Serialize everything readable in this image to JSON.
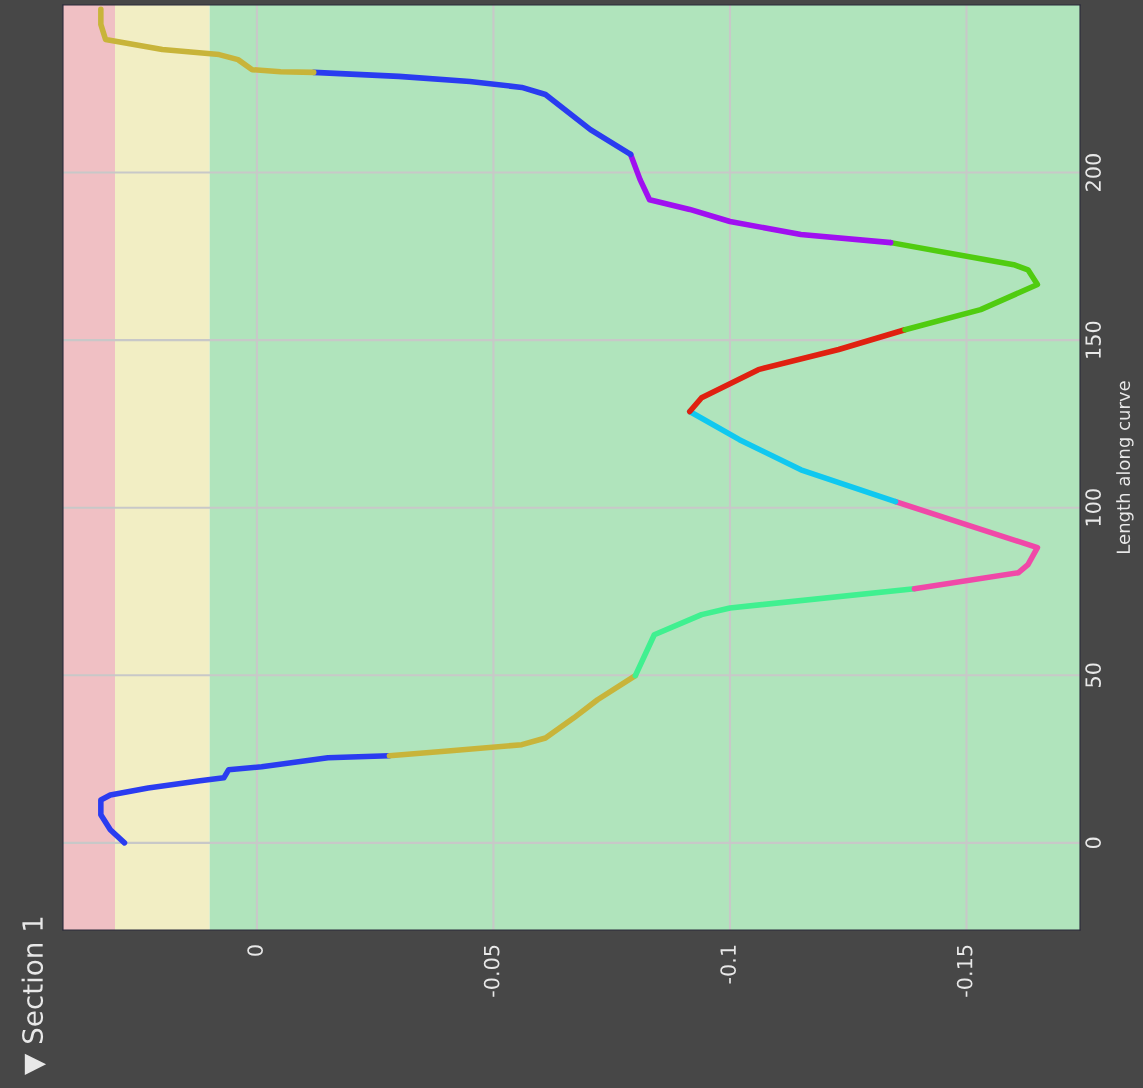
{
  "chart_data": {
    "type": "line",
    "title": "▼ Section 1",
    "ylabel": "Length along curve",
    "ylim": [
      -26,
      250
    ],
    "yticks": [
      0,
      50,
      100,
      150,
      200
    ],
    "xlim": [
      0.041,
      -0.174
    ],
    "xticks": [
      0,
      -0.05,
      -0.1,
      -0.15
    ],
    "grid": true,
    "marker": "none",
    "line_style": "solid",
    "bands": [
      {
        "axis": "x",
        "from": 0.03,
        "to": 0.041,
        "color": "#f0c0c4"
      },
      {
        "axis": "x",
        "from": 0.01,
        "to": 0.03,
        "color": "#f2eec4"
      },
      {
        "axis": "x",
        "from": -0.174,
        "to": 0.01,
        "color": "#b0e4bc"
      }
    ],
    "series": [
      {
        "color": "#2a3cf0",
        "values": [
          0,
          3.9,
          8.4,
          12.8,
          14.3,
          16.4,
          18.5,
          19.4,
          21.8,
          22.7,
          25.4,
          26
        ],
        "x": [
          0.028,
          0.031,
          0.033,
          0.033,
          0.031,
          0.023,
          0.012,
          0.007,
          0.006,
          -0.001,
          -0.015,
          -0.028
        ]
      },
      {
        "color": "#c8b43a",
        "values": [
          26,
          27.5,
          29.3,
          31.3,
          37.3,
          42.7,
          49.9
        ],
        "x": [
          -0.028,
          -0.041,
          -0.056,
          -0.061,
          -0.067,
          -0.072,
          -0.08
        ]
      },
      {
        "color": "#40f090",
        "values": [
          49.9,
          62.1,
          68.1,
          70.1,
          75.8
        ],
        "x": [
          -0.08,
          -0.084,
          -0.094,
          -0.1,
          -0.139
        ]
      },
      {
        "color": "#f048a8",
        "values": [
          75.8,
          80.6,
          83,
          88.1,
          101.8
        ],
        "x": [
          -0.139,
          -0.161,
          -0.163,
          -0.165,
          -0.135
        ]
      },
      {
        "color": "#10c8f0",
        "values": [
          101.8,
          111.3,
          120.3,
          128.7
        ],
        "x": [
          -0.135,
          -0.115,
          -0.102,
          -0.0915
        ]
      },
      {
        "color": "#e02010",
        "values": [
          128.7,
          132.8,
          141.2,
          147.2,
          153.1
        ],
        "x": [
          -0.0915,
          -0.094,
          -0.106,
          -0.123,
          -0.137
        ]
      },
      {
        "color": "#50cc10",
        "values": [
          153.1,
          159.1,
          166.6,
          171,
          172.5,
          179.1
        ],
        "x": [
          -0.137,
          -0.153,
          -0.165,
          -0.163,
          -0.16,
          -0.134
        ]
      },
      {
        "color": "#a010f0",
        "values": [
          179.1,
          181.5,
          185.4,
          189,
          191.9,
          197.9,
          205.4
        ],
        "x": [
          -0.134,
          -0.115,
          -0.1,
          -0.0915,
          -0.083,
          -0.081,
          -0.079
        ]
      },
      {
        "color": "#2a3cf0",
        "values": [
          205.4,
          212.8,
          223.3,
          225.4,
          227.2,
          228.7,
          229.9
        ],
        "x": [
          -0.079,
          -0.0705,
          -0.061,
          -0.056,
          -0.045,
          -0.03,
          -0.012
        ]
      },
      {
        "color": "#c8b43a",
        "values": [
          229.9,
          230.1,
          230.7,
          233.7,
          235.2,
          236.7,
          239.7,
          244.2,
          248.7
        ],
        "x": [
          -0.012,
          -0.005,
          0.001,
          0.004,
          0.008,
          0.02,
          0.032,
          0.033,
          0.033
        ]
      }
    ]
  }
}
